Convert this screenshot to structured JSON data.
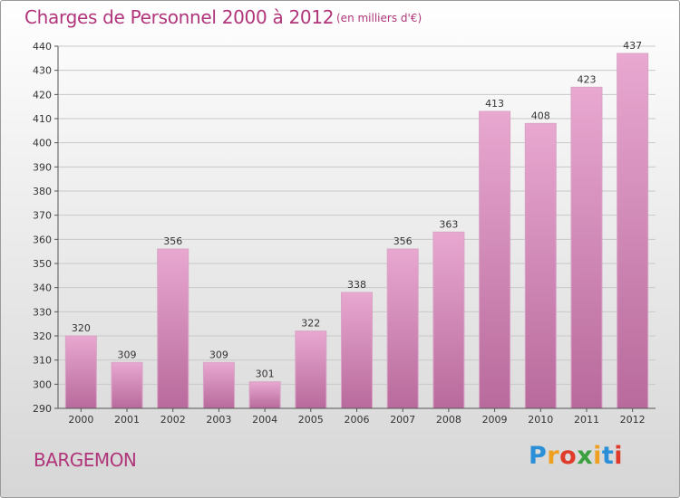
{
  "title": "Charges de Personnel 2000 à 2012",
  "subtitle": "(en milliers d'€)",
  "commune": "BARGEMON",
  "logo": {
    "letters": [
      "P",
      "r",
      "o",
      "x",
      "i",
      "t",
      "i"
    ],
    "colors": [
      "#2a8fd6",
      "#f0a020",
      "#e03a2a",
      "#3aa040",
      "#f0a020",
      "#2a8fd6",
      "#e03a2a"
    ]
  },
  "colors": {
    "bar_top": "#e8a8d0",
    "bar_bottom": "#b86a9c",
    "accent": "#b0357a",
    "grid": "#c8c8c8"
  },
  "chart_data": {
    "type": "bar",
    "title": "Charges de Personnel 2000 à 2012",
    "subtitle": "(en milliers d'€)",
    "categories": [
      "2000",
      "2001",
      "2002",
      "2003",
      "2004",
      "2005",
      "2006",
      "2007",
      "2008",
      "2009",
      "2010",
      "2011",
      "2012"
    ],
    "values": [
      320,
      309,
      356,
      309,
      301,
      322,
      338,
      356,
      363,
      413,
      408,
      423,
      437
    ],
    "ylim": [
      290,
      440
    ],
    "yticks": [
      290,
      300,
      310,
      320,
      330,
      340,
      350,
      360,
      370,
      380,
      390,
      400,
      410,
      420,
      430,
      440
    ],
    "grid": true,
    "data_labels": true
  }
}
